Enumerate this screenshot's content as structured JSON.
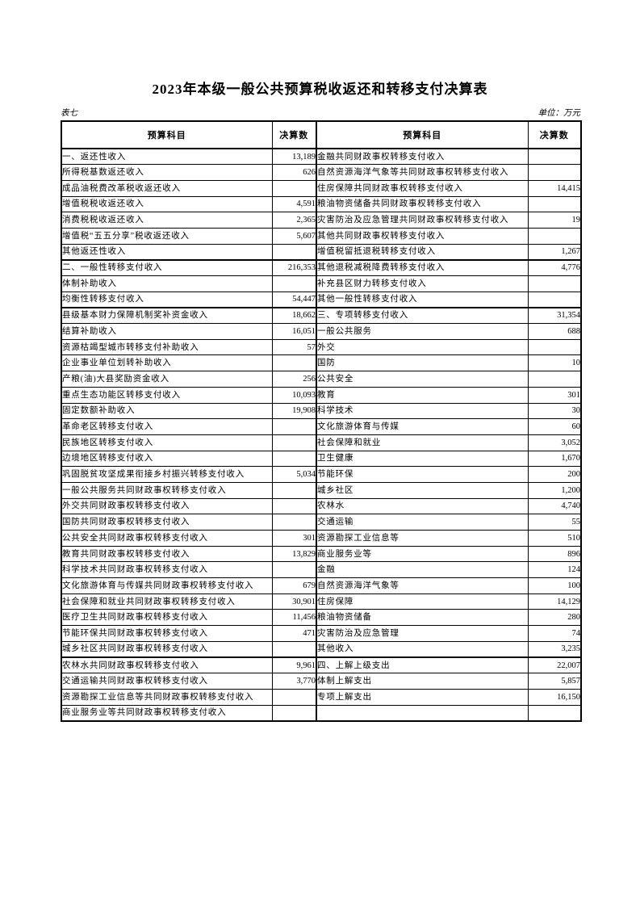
{
  "page": {
    "title": "2023年本级一般公共预算税收返还和转移支付决算表",
    "table_label": "表七",
    "unit_label": "单位：万元"
  },
  "table": {
    "headers": [
      "预算科目",
      "决算数",
      "预算科目",
      "决算数"
    ],
    "rows": [
      {
        "l": "一、返还性收入",
        "li": 0,
        "lv": "13,189",
        "r": "金融共同财政事权转移支付收入",
        "ri": 1,
        "rv": "",
        "t": false
      },
      {
        "l": "所得税基数返还收入",
        "li": 1,
        "lv": "626",
        "r": "自然资源海洋气象等共同财政事权转移支付收入",
        "ri": 1,
        "rv": "",
        "t": false
      },
      {
        "l": "成品油税费改革税收返还收入",
        "li": 1,
        "lv": "",
        "r": "住房保障共同财政事权转移支付收入",
        "ri": 1,
        "rv": "14,415",
        "t": false
      },
      {
        "l": "增值税税收返还收入",
        "li": 1,
        "lv": "4,591",
        "r": "粮油物资储备共同财政事权转移支付收入",
        "ri": 1,
        "rv": "",
        "t": false
      },
      {
        "l": "消费税税收返还收入",
        "li": 1,
        "lv": "2,365",
        "r": "灾害防治及应急管理共同财政事权转移支付收入",
        "ri": 1,
        "rv": "19",
        "t": false
      },
      {
        "l": "增值税“五五分享”税收返还收入",
        "li": 1,
        "lv": "5,607",
        "r": "其他共同财政事权转移支付收入",
        "ri": 1,
        "rv": "",
        "t": false
      },
      {
        "l": "其他返还性收入",
        "li": 1,
        "lv": "",
        "r": "增值税留抵退税转移支付收入",
        "ri": 1,
        "rv": "1,267",
        "t": false
      },
      {
        "l": "二、一般性转移支付收入",
        "li": 0,
        "lv": "216,353",
        "r": "其他退税减税降费转移支付收入",
        "ri": 1,
        "rv": "4,776",
        "t": true
      },
      {
        "l": "体制补助收入",
        "li": 1,
        "lv": "",
        "r": "补充县区财力转移支付收入",
        "ri": 1,
        "rv": "",
        "t": false
      },
      {
        "l": "均衡性转移支付收入",
        "li": 1,
        "lv": "54,447",
        "r": "其他一般性转移支付收入",
        "ri": 1,
        "rv": "",
        "t": false
      },
      {
        "l": "县级基本财力保障机制奖补资金收入",
        "li": 1,
        "lv": "18,662",
        "r": "三、专项转移支付收入",
        "ri": 0,
        "rv": "31,354",
        "t": true
      },
      {
        "l": "结算补助收入",
        "li": 1,
        "lv": "16,051",
        "r": "一般公共服务",
        "ri": 1,
        "rv": "688",
        "t": false
      },
      {
        "l": "资源枯竭型城市转移支付补助收入",
        "li": 1,
        "lv": "57",
        "r": "外交",
        "ri": 1,
        "rv": "",
        "t": false
      },
      {
        "l": "企业事业单位划转补助收入",
        "li": 1,
        "lv": "",
        "r": "国防",
        "ri": 1,
        "rv": "10",
        "t": false
      },
      {
        "l": "产粮(油)大县奖励资金收入",
        "li": 1,
        "lv": "256",
        "r": "公共安全",
        "ri": 1,
        "rv": "",
        "t": false
      },
      {
        "l": "重点生态功能区转移支付收入",
        "li": 1,
        "lv": "10,093",
        "r": "教育",
        "ri": 1,
        "rv": "301",
        "t": false
      },
      {
        "l": "固定数额补助收入",
        "li": 1,
        "lv": "19,908",
        "r": "科学技术",
        "ri": 1,
        "rv": "30",
        "t": false
      },
      {
        "l": "革命老区转移支付收入",
        "li": 1,
        "lv": "",
        "r": "文化旅游体育与传媒",
        "ri": 1,
        "rv": "60",
        "t": false
      },
      {
        "l": "民族地区转移支付收入",
        "li": 1,
        "lv": "",
        "r": "社会保障和就业",
        "ri": 1,
        "rv": "3,052",
        "t": false
      },
      {
        "l": "边境地区转移支付收入",
        "li": 1,
        "lv": "",
        "r": "卫生健康",
        "ri": 1,
        "rv": "1,670",
        "t": false
      },
      {
        "l": "巩固脱贫攻坚成果衔接乡村振兴转移支付收入",
        "li": 1,
        "lv": "5,034",
        "r": "节能环保",
        "ri": 1,
        "rv": "200",
        "t": false
      },
      {
        "l": "一般公共服务共同财政事权转移支付收入",
        "li": 1,
        "lv": "",
        "r": "城乡社区",
        "ri": 1,
        "rv": "1,200",
        "t": false
      },
      {
        "l": "外交共同财政事权转移支付收入",
        "li": 1,
        "lv": "",
        "r": "农林水",
        "ri": 1,
        "rv": "4,740",
        "t": false
      },
      {
        "l": "国防共同财政事权转移支付收入",
        "li": 1,
        "lv": "",
        "r": "交通运输",
        "ri": 1,
        "rv": "55",
        "t": false
      },
      {
        "l": "公共安全共同财政事权转移支付收入",
        "li": 1,
        "lv": "301",
        "r": "资源勘探工业信息等",
        "ri": 1,
        "rv": "510",
        "t": false
      },
      {
        "l": "教育共同财政事权转移支付收入",
        "li": 1,
        "lv": "13,829",
        "r": "商业服务业等",
        "ri": 1,
        "rv": "896",
        "t": false
      },
      {
        "l": "科学技术共同财政事权转移支付收入",
        "li": 1,
        "lv": "",
        "r": "金融",
        "ri": 1,
        "rv": "124",
        "t": false
      },
      {
        "l": "文化旅游体育与传媒共同财政事权转移支付收入",
        "li": 1,
        "lv": "679",
        "r": "自然资源海洋气象等",
        "ri": 1,
        "rv": "100",
        "t": false
      },
      {
        "l": "社会保障和就业共同财政事权转移支付收入",
        "li": 1,
        "lv": "30,901",
        "r": "住房保障",
        "ri": 1,
        "rv": "14,129",
        "t": false
      },
      {
        "l": "医疗卫生共同财政事权转移支付收入",
        "li": 1,
        "lv": "11,456",
        "r": "粮油物资储备",
        "ri": 1,
        "rv": "280",
        "t": false
      },
      {
        "l": "节能环保共同财政事权转移支付收入",
        "li": 1,
        "lv": "471",
        "r": "灾害防治及应急管理",
        "ri": 1,
        "rv": "74",
        "t": false
      },
      {
        "l": "城乡社区共同财政事权转移支付收入",
        "li": 1,
        "lv": "",
        "r": "其他收入",
        "ri": 1,
        "rv": "3,235",
        "t": false
      },
      {
        "l": "农林水共同财政事权转移支付收入",
        "li": 1,
        "lv": "9,961",
        "r": "四、上解上级支出",
        "ri": 0,
        "rv": "22,007",
        "t": true
      },
      {
        "l": "交通运输共同财政事权转移支付收入",
        "li": 1,
        "lv": "3,770",
        "r": "体制上解支出",
        "ri": 1,
        "rv": "5,857",
        "t": false
      },
      {
        "l": "资源勘探工业信息等共同财政事权转移支付收入",
        "li": 1,
        "lv": "",
        "r": "专项上解支出",
        "ri": 1,
        "rv": "16,150",
        "t": false
      },
      {
        "l": "商业服务业等共同财政事权转移支付收入",
        "li": 1,
        "lv": "",
        "r": "",
        "ri": 1,
        "rv": "",
        "t": false
      }
    ]
  }
}
